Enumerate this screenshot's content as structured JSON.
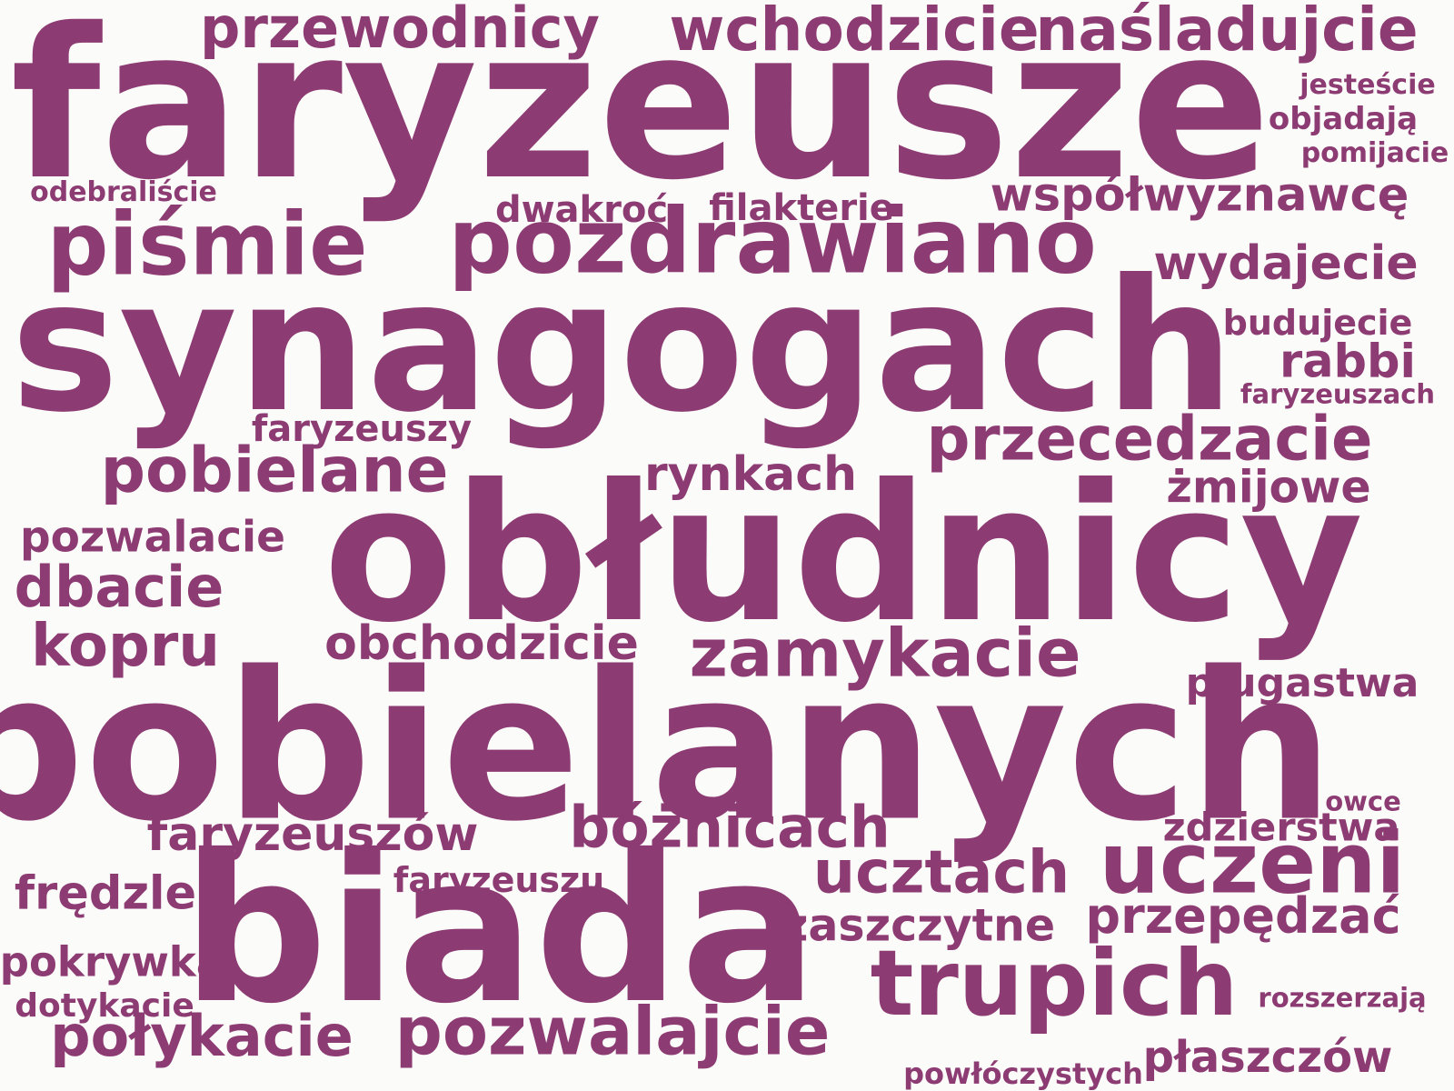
{
  "color": "#8d3b73",
  "background": "#fbfbf9",
  "words": [
    {
      "text": "faryzeusze",
      "weight": 100
    },
    {
      "text": "synagogach",
      "weight": 100
    },
    {
      "text": "obłudnicy",
      "weight": 100
    },
    {
      "text": "pobielanych",
      "weight": 100
    },
    {
      "text": "biada",
      "weight": 100
    },
    {
      "text": "pozdrawiano",
      "weight": 60
    },
    {
      "text": "piśmie",
      "weight": 60
    },
    {
      "text": "uczeni",
      "weight": 60
    },
    {
      "text": "trupich",
      "weight": 60
    },
    {
      "text": "zamykacie",
      "weight": 45
    },
    {
      "text": "pozwalajcie",
      "weight": 45
    },
    {
      "text": "pobielane",
      "weight": 45
    },
    {
      "text": "przecedzacie",
      "weight": 45
    },
    {
      "text": "wchodzicie",
      "weight": 45
    },
    {
      "text": "naśladujcie",
      "weight": 45
    },
    {
      "text": "przewodnicy",
      "weight": 42
    },
    {
      "text": "ucztach",
      "weight": 42
    },
    {
      "text": "bóżnicach",
      "weight": 42
    },
    {
      "text": "kopru",
      "weight": 42
    },
    {
      "text": "dbacie",
      "weight": 42
    },
    {
      "text": "połykacie",
      "weight": 42
    },
    {
      "text": "przepędzać",
      "weight": 38
    },
    {
      "text": "współwyznawcę",
      "weight": 35
    },
    {
      "text": "wydajecie",
      "weight": 35
    },
    {
      "text": "rynkach",
      "weight": 35
    },
    {
      "text": "obchodzicie",
      "weight": 35
    },
    {
      "text": "faryzeuszów",
      "weight": 35
    },
    {
      "text": "zaszczytne",
      "weight": 35
    },
    {
      "text": "frędzle",
      "weight": 35
    },
    {
      "text": "rabbi",
      "weight": 35
    },
    {
      "text": "żmijowe",
      "weight": 35
    },
    {
      "text": "pozwalacie",
      "weight": 32
    },
    {
      "text": "pokrywką",
      "weight": 30
    },
    {
      "text": "płaszczów",
      "weight": 32
    },
    {
      "text": "plugastwa",
      "weight": 30
    },
    {
      "text": "zdzierstwa",
      "weight": 28
    },
    {
      "text": "faryzeuszy",
      "weight": 28
    },
    {
      "text": "faryzeuszu",
      "weight": 28
    },
    {
      "text": "dwakroć",
      "weight": 26
    },
    {
      "text": "filakterie",
      "weight": 26
    },
    {
      "text": "budujecie",
      "weight": 26
    },
    {
      "text": "objadają",
      "weight": 24
    },
    {
      "text": "dotykacie",
      "weight": 26
    },
    {
      "text": "powłóczystych",
      "weight": 24
    },
    {
      "text": "jesteście",
      "weight": 22
    },
    {
      "text": "pomijacie",
      "weight": 22
    },
    {
      "text": "odebraliście",
      "weight": 22
    },
    {
      "text": "faryzeuszach",
      "weight": 22
    },
    {
      "text": "rozszerzają",
      "weight": 22
    },
    {
      "text": "owce",
      "weight": 22
    }
  ]
}
